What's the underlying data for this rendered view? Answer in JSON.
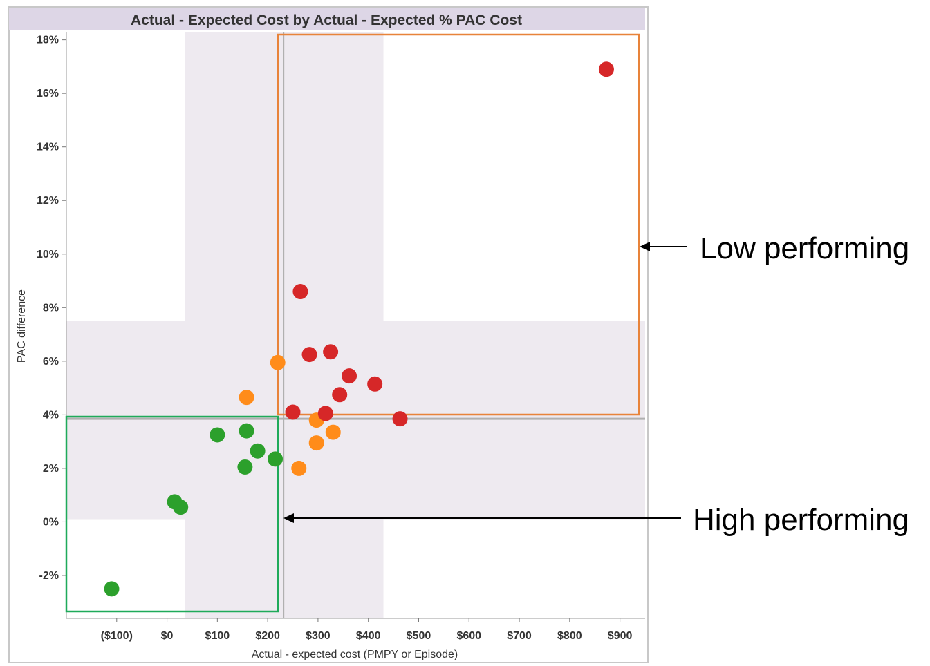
{
  "chart_data": {
    "type": "scatter",
    "title": "Actual - Expected Cost by Actual - Expected % PAC Cost",
    "xlabel": "Actual - expected cost (PMPY or Episode)",
    "ylabel": "PAC difference",
    "xlim": [
      -200,
      950
    ],
    "ylim": [
      -3.6,
      18.3
    ],
    "x_ticks": [
      -100,
      0,
      100,
      200,
      300,
      400,
      500,
      600,
      700,
      800,
      900
    ],
    "x_tick_labels": [
      "($100)",
      "$0",
      "$100",
      "$200",
      "$300",
      "$400",
      "$500",
      "$600",
      "$700",
      "$800",
      "$900"
    ],
    "y_ticks": [
      18,
      16,
      14,
      12,
      10,
      8,
      6,
      4,
      2,
      0,
      -2
    ],
    "y_tick_labels": [
      "18%",
      "16%",
      "14%",
      "12%",
      "10%",
      "8%",
      "6%",
      "4%",
      "2%",
      "0%",
      "-2%"
    ],
    "x_shade_band": [
      35,
      430
    ],
    "y_shade_band": [
      0.1,
      7.5
    ],
    "reference_lines": {
      "x": 232,
      "y": 3.85
    },
    "grid": false,
    "colors": {
      "green": "#2ca02c",
      "orange": "#ff8c1a",
      "red": "#d62728",
      "shade": "#eeeaf0",
      "title_bar": "#ddd6e6",
      "low_box": "#e8833a",
      "high_box": "#1faa5a"
    },
    "series": [
      {
        "color_key": "green",
        "points": [
          {
            "x": -110,
            "y": -2.5
          },
          {
            "x": 15,
            "y": 0.75
          },
          {
            "x": 27,
            "y": 0.55
          },
          {
            "x": 100,
            "y": 3.25
          },
          {
            "x": 158,
            "y": 3.4
          },
          {
            "x": 155,
            "y": 2.05
          },
          {
            "x": 180,
            "y": 2.65
          },
          {
            "x": 215,
            "y": 2.35
          }
        ]
      },
      {
        "color_key": "orange",
        "points": [
          {
            "x": 158,
            "y": 4.65
          },
          {
            "x": 220,
            "y": 5.95
          },
          {
            "x": 262,
            "y": 2.0
          },
          {
            "x": 297,
            "y": 3.8
          },
          {
            "x": 297,
            "y": 2.95
          },
          {
            "x": 330,
            "y": 3.35
          }
        ]
      },
      {
        "color_key": "red",
        "points": [
          {
            "x": 873,
            "y": 16.9
          },
          {
            "x": 265,
            "y": 8.6
          },
          {
            "x": 283,
            "y": 6.25
          },
          {
            "x": 325,
            "y": 6.35
          },
          {
            "x": 362,
            "y": 5.45
          },
          {
            "x": 343,
            "y": 4.75
          },
          {
            "x": 413,
            "y": 5.15
          },
          {
            "x": 250,
            "y": 4.1
          },
          {
            "x": 315,
            "y": 4.05
          },
          {
            "x": 463,
            "y": 3.85
          }
        ]
      }
    ],
    "annotations": {
      "low": {
        "label": "Low performing"
      },
      "high": {
        "label": "High performing"
      }
    }
  }
}
